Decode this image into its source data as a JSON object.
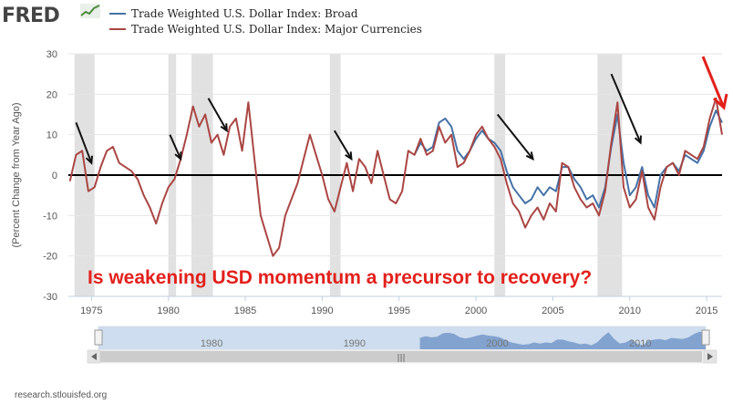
{
  "brand": {
    "logo_text": "FRED"
  },
  "legend": {
    "broad": {
      "label": "Trade Weighted U.S. Dollar Index: Broad",
      "color": "#4572a7"
    },
    "major": {
      "label": "Trade Weighted U.S. Dollar Index: Major Currencies",
      "color": "#aa4643"
    }
  },
  "annotation": {
    "headline": "Is weakening USD momentum a precursor to recovery?",
    "color": "#e2211c",
    "arrow_color": "#111111",
    "last_arrow_color": "#e2211c"
  },
  "footer": {
    "source": "research.stlouisfed.org"
  },
  "navigator": {
    "labels": [
      "1980",
      "1990",
      "2000",
      "2010"
    ]
  },
  "chart_data": {
    "type": "line",
    "title": "",
    "xlabel": "",
    "ylabel": "(Percent Change from Year Ago)",
    "xlim": [
      1973.5,
      2016
    ],
    "ylim": [
      -30,
      30
    ],
    "yticks": [
      -30,
      -20,
      -10,
      0,
      10,
      20,
      30
    ],
    "xticks": [
      1975,
      1980,
      1985,
      1990,
      1995,
      2000,
      2005,
      2010,
      2015
    ],
    "grid": true,
    "recessions": [
      [
        1973.9,
        1975.2
      ],
      [
        1980.0,
        1980.5
      ],
      [
        1981.5,
        1982.9
      ],
      [
        1990.5,
        1991.2
      ],
      [
        2001.2,
        2001.9
      ],
      [
        2007.9,
        2009.5
      ]
    ],
    "series": [
      {
        "name": "Trade Weighted U.S. Dollar Index: Major Currencies",
        "color": "#aa4643",
        "x": [
          1973.6,
          1974.0,
          1974.4,
          1974.8,
          1975.2,
          1975.6,
          1976.0,
          1976.4,
          1976.8,
          1977.2,
          1977.6,
          1978.0,
          1978.4,
          1978.8,
          1979.2,
          1979.6,
          1980.0,
          1980.4,
          1980.8,
          1981.2,
          1981.6,
          1982.0,
          1982.4,
          1982.8,
          1983.2,
          1983.6,
          1984.0,
          1984.4,
          1984.8,
          1985.2,
          1985.6,
          1986.0,
          1986.4,
          1986.8,
          1987.2,
          1987.6,
          1988.0,
          1988.4,
          1988.8,
          1989.2,
          1989.6,
          1990.0,
          1990.4,
          1990.8,
          1991.2,
          1991.6,
          1992.0,
          1992.4,
          1992.8,
          1993.2,
          1993.6,
          1994.0,
          1994.4,
          1994.8,
          1995.2,
          1995.6,
          1996.0,
          1996.4,
          1996.8,
          1997.2,
          1997.6,
          1998.0,
          1998.4,
          1998.8,
          1999.2,
          1999.6,
          2000.0,
          2000.4,
          2000.8,
          2001.2,
          2001.6,
          2002.0,
          2002.4,
          2002.8,
          2003.2,
          2003.6,
          2004.0,
          2004.4,
          2004.8,
          2005.2,
          2005.6,
          2006.0,
          2006.4,
          2006.8,
          2007.2,
          2007.6,
          2008.0,
          2008.4,
          2008.8,
          2009.2,
          2009.6,
          2010.0,
          2010.4,
          2010.8,
          2011.2,
          2011.6,
          2012.0,
          2012.4,
          2012.8,
          2013.2,
          2013.6,
          2014.0,
          2014.4,
          2014.8,
          2015.2,
          2015.6,
          2016.0
        ],
        "values": [
          -1.5,
          5,
          6,
          -4,
          -3,
          2,
          6,
          7,
          3,
          2,
          1,
          -1,
          -5,
          -8,
          -12,
          -7,
          -3,
          -1,
          4,
          10,
          17,
          12,
          15,
          8,
          10,
          5,
          12,
          14,
          6,
          18,
          4,
          -10,
          -15,
          -20,
          -18,
          -10,
          -6,
          -2,
          4,
          10,
          5,
          0,
          -6,
          -9,
          -3,
          3,
          -4,
          4,
          2,
          -2,
          6,
          0,
          -6,
          -7,
          -4,
          6,
          5,
          9,
          5,
          6,
          12,
          8,
          10,
          2,
          3,
          6,
          10,
          12,
          9,
          7,
          4,
          -2,
          -7,
          -9,
          -13,
          -10,
          -8,
          -11,
          -7,
          -9,
          3,
          2,
          -3,
          -6,
          -8,
          -7,
          -10,
          -4,
          8,
          18,
          -3,
          -8,
          -6,
          1,
          -8,
          -11,
          -3,
          2,
          3,
          0,
          6,
          5,
          4,
          7,
          14,
          19,
          10
        ]
      },
      {
        "name": "Trade Weighted U.S. Dollar Index: Broad",
        "color": "#4572a7",
        "x": [
          1996.0,
          1996.4,
          1996.8,
          1997.2,
          1997.6,
          1998.0,
          1998.4,
          1998.8,
          1999.2,
          1999.6,
          2000.0,
          2000.4,
          2000.8,
          2001.2,
          2001.6,
          2002.0,
          2002.4,
          2002.8,
          2003.2,
          2003.6,
          2004.0,
          2004.4,
          2004.8,
          2005.2,
          2005.6,
          2006.0,
          2006.4,
          2006.8,
          2007.2,
          2007.6,
          2008.0,
          2008.4,
          2008.8,
          2009.2,
          2009.6,
          2010.0,
          2010.4,
          2010.8,
          2011.2,
          2011.6,
          2012.0,
          2012.4,
          2012.8,
          2013.2,
          2013.6,
          2014.0,
          2014.4,
          2014.8,
          2015.2,
          2015.6,
          2016.0
        ],
        "values": [
          5,
          8,
          6,
          7,
          13,
          14,
          12,
          6,
          4,
          6,
          9,
          11,
          9,
          8,
          6,
          1,
          -3,
          -5,
          -7,
          -6,
          -3,
          -5,
          -3,
          -4,
          2,
          2,
          -1,
          -3,
          -6,
          -5,
          -8,
          -3,
          7,
          15,
          3,
          -5,
          -3,
          2,
          -5,
          -8,
          0,
          2,
          3,
          1,
          5,
          4,
          3,
          6,
          12,
          16,
          13
        ]
      }
    ]
  }
}
